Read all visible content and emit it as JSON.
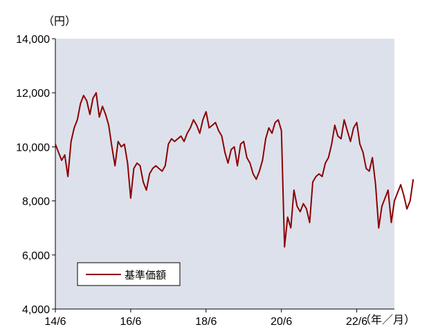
{
  "chart_data": {
    "type": "line",
    "y_unit": "（円）",
    "x_unit": "（年／月）",
    "ylim": [
      4000,
      14000
    ],
    "y_ticks": [
      4000,
      6000,
      8000,
      10000,
      12000,
      14000
    ],
    "y_tick_labels": [
      "4,000",
      "6,000",
      "8,000",
      "10,000",
      "12,000",
      "14,000"
    ],
    "xlim": [
      "2014-06",
      "2023-06"
    ],
    "x_tick_labels": [
      "14/6",
      "16/6",
      "18/6",
      "20/6",
      "22/6"
    ],
    "x_tick_dates": [
      "2014-06",
      "2016-06",
      "2018-06",
      "2020-06",
      "2022-06"
    ],
    "grid": false,
    "background": "#dde1eb",
    "legend_position": "bottom-left",
    "series": [
      {
        "name": "基準価額",
        "color": "#8b0000",
        "points": [
          [
            "2014-06",
            10100
          ],
          [
            "2014-07",
            9800
          ],
          [
            "2014-08",
            9500
          ],
          [
            "2014-09",
            9700
          ],
          [
            "2014-10",
            8900
          ],
          [
            "2014-11",
            10200
          ],
          [
            "2014-12",
            10700
          ],
          [
            "2015-01",
            11000
          ],
          [
            "2015-02",
            11600
          ],
          [
            "2015-03",
            11900
          ],
          [
            "2015-04",
            11700
          ],
          [
            "2015-05",
            11200
          ],
          [
            "2015-06",
            11800
          ],
          [
            "2015-07",
            12000
          ],
          [
            "2015-08",
            11100
          ],
          [
            "2015-09",
            11500
          ],
          [
            "2015-10",
            11200
          ],
          [
            "2015-11",
            10800
          ],
          [
            "2015-12",
            10000
          ],
          [
            "2016-01",
            9300
          ],
          [
            "2016-02",
            10200
          ],
          [
            "2016-03",
            10000
          ],
          [
            "2016-04",
            10100
          ],
          [
            "2016-05",
            9400
          ],
          [
            "2016-06",
            8100
          ],
          [
            "2016-07",
            9200
          ],
          [
            "2016-08",
            9400
          ],
          [
            "2016-09",
            9300
          ],
          [
            "2016-10",
            8700
          ],
          [
            "2016-11",
            8400
          ],
          [
            "2016-12",
            9000
          ],
          [
            "2017-01",
            9200
          ],
          [
            "2017-02",
            9300
          ],
          [
            "2017-03",
            9200
          ],
          [
            "2017-04",
            9100
          ],
          [
            "2017-05",
            9300
          ],
          [
            "2017-06",
            10100
          ],
          [
            "2017-07",
            10300
          ],
          [
            "2017-08",
            10200
          ],
          [
            "2017-09",
            10300
          ],
          [
            "2017-10",
            10400
          ],
          [
            "2017-11",
            10200
          ],
          [
            "2017-12",
            10500
          ],
          [
            "2018-01",
            10700
          ],
          [
            "2018-02",
            11000
          ],
          [
            "2018-03",
            10800
          ],
          [
            "2018-04",
            10500
          ],
          [
            "2018-05",
            11000
          ],
          [
            "2018-06",
            11300
          ],
          [
            "2018-07",
            10700
          ],
          [
            "2018-08",
            10800
          ],
          [
            "2018-09",
            10900
          ],
          [
            "2018-10",
            10600
          ],
          [
            "2018-11",
            10400
          ],
          [
            "2018-12",
            9800
          ],
          [
            "2019-01",
            9400
          ],
          [
            "2019-02",
            9900
          ],
          [
            "2019-03",
            10000
          ],
          [
            "2019-04",
            9300
          ],
          [
            "2019-05",
            10100
          ],
          [
            "2019-06",
            10200
          ],
          [
            "2019-07",
            9600
          ],
          [
            "2019-08",
            9400
          ],
          [
            "2019-09",
            9000
          ],
          [
            "2019-10",
            8800
          ],
          [
            "2019-11",
            9100
          ],
          [
            "2019-12",
            9500
          ],
          [
            "2020-01",
            10300
          ],
          [
            "2020-02",
            10700
          ],
          [
            "2020-03",
            10500
          ],
          [
            "2020-04",
            10900
          ],
          [
            "2020-05",
            11000
          ],
          [
            "2020-06",
            10600
          ],
          [
            "2020-07",
            6300
          ],
          [
            "2020-08",
            7400
          ],
          [
            "2020-09",
            7000
          ],
          [
            "2020-10",
            8400
          ],
          [
            "2020-11",
            7800
          ],
          [
            "2020-12",
            7600
          ],
          [
            "2021-01",
            7900
          ],
          [
            "2021-02",
            7700
          ],
          [
            "2021-03",
            7200
          ],
          [
            "2021-04",
            8700
          ],
          [
            "2021-05",
            8900
          ],
          [
            "2021-06",
            9000
          ],
          [
            "2021-07",
            8900
          ],
          [
            "2021-08",
            9400
          ],
          [
            "2021-09",
            9600
          ],
          [
            "2021-10",
            10100
          ],
          [
            "2021-11",
            10800
          ],
          [
            "2021-12",
            10400
          ],
          [
            "2022-01",
            10300
          ],
          [
            "2022-02",
            11000
          ],
          [
            "2022-03",
            10600
          ],
          [
            "2022-04",
            10200
          ],
          [
            "2022-05",
            10700
          ],
          [
            "2022-06",
            10900
          ],
          [
            "2022-07",
            10100
          ],
          [
            "2022-08",
            9800
          ],
          [
            "2022-09",
            9200
          ],
          [
            "2022-10",
            9100
          ],
          [
            "2022-11",
            9600
          ],
          [
            "2022-12",
            8600
          ],
          [
            "2023-01",
            7000
          ],
          [
            "2023-02",
            7800
          ],
          [
            "2023-03",
            8100
          ],
          [
            "2023-04",
            8400
          ],
          [
            "2023-05",
            7200
          ],
          [
            "2023-06",
            8000
          ],
          [
            "2023-07",
            8300
          ],
          [
            "2023-08",
            8600
          ],
          [
            "2023-09",
            8200
          ],
          [
            "2023-10",
            7700
          ],
          [
            "2023-11",
            8000
          ],
          [
            "2023-12",
            8800
          ]
        ]
      }
    ]
  }
}
